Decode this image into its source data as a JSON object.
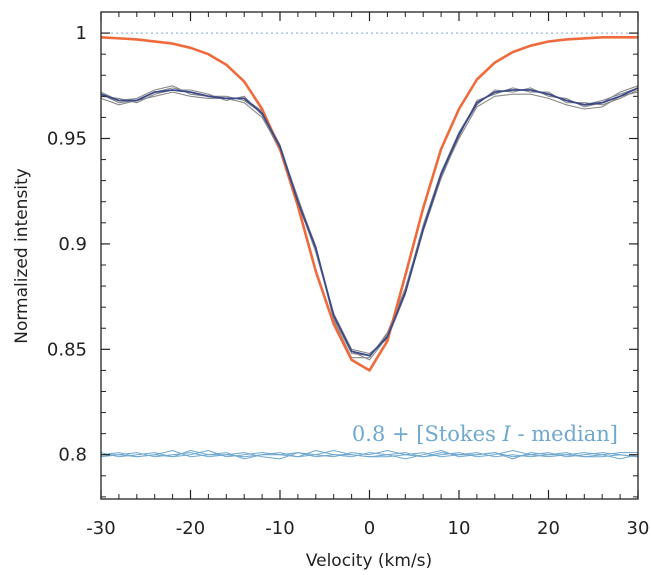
{
  "chart_data": {
    "type": "line",
    "xlabel": "Velocity (km/s)",
    "ylabel": "Normalized intensity",
    "xlim": [
      -30,
      30
    ],
    "ylim": [
      0.779,
      1.01
    ],
    "x_ticks": [
      -30,
      -20,
      -10,
      0,
      10,
      20,
      30
    ],
    "x_tick_labels": [
      "-30",
      "-20",
      "-10",
      "0",
      "10",
      "20",
      "30"
    ],
    "y_ticks": [
      0.8,
      0.85,
      0.9,
      0.95,
      1.0
    ],
    "y_tick_labels": [
      "0.8",
      "0.85",
      "0.9",
      "0.95",
      "1"
    ],
    "reference_line": {
      "y": 1.0,
      "style": "dotted",
      "color": "#7aa7d6"
    },
    "annotation": {
      "prefix": "0.8 + [Stokes ",
      "italic": "I",
      "suffix": " - median]",
      "color": "#6fa8d0"
    },
    "colors": {
      "observed_individual": "#8a8a8a",
      "observed_median": "#3b4a8a",
      "model": "#ef6a3c",
      "residuals": "#6fa8d0",
      "axis": "#222222"
    },
    "x_obs": [
      -30,
      -28,
      -26,
      -24,
      -22,
      -20,
      -18,
      -16,
      -14,
      -12,
      -10,
      -8,
      -6,
      -4,
      -2,
      0,
      2,
      4,
      6,
      8,
      10,
      12,
      14,
      16,
      18,
      20,
      22,
      24,
      26,
      28,
      30
    ],
    "series": [
      {
        "name": "",
        "role": "individual",
        "values": [
          0.971,
          0.967,
          0.968,
          0.972,
          0.974,
          0.972,
          0.97,
          0.969,
          0.969,
          0.963,
          0.947,
          0.921,
          0.899,
          0.865,
          0.848,
          0.847,
          0.857,
          0.878,
          0.909,
          0.934,
          0.953,
          0.967,
          0.972,
          0.973,
          0.973,
          0.971,
          0.968,
          0.966,
          0.968,
          0.971,
          0.974
        ]
      },
      {
        "name": "",
        "role": "individual",
        "values": [
          0.97,
          0.969,
          0.967,
          0.971,
          0.973,
          0.973,
          0.971,
          0.968,
          0.97,
          0.961,
          0.944,
          0.919,
          0.897,
          0.867,
          0.85,
          0.848,
          0.855,
          0.876,
          0.906,
          0.931,
          0.951,
          0.968,
          0.971,
          0.974,
          0.972,
          0.972,
          0.967,
          0.967,
          0.966,
          0.969,
          0.973
        ]
      },
      {
        "name": "",
        "role": "individual",
        "values": [
          0.972,
          0.968,
          0.969,
          0.973,
          0.975,
          0.971,
          0.97,
          0.97,
          0.968,
          0.962,
          0.946,
          0.922,
          0.898,
          0.864,
          0.846,
          0.846,
          0.858,
          0.879,
          0.908,
          0.933,
          0.952,
          0.966,
          0.973,
          0.972,
          0.974,
          0.97,
          0.969,
          0.965,
          0.967,
          0.972,
          0.975
        ]
      },
      {
        "name": "",
        "role": "individual",
        "values": [
          0.969,
          0.966,
          0.968,
          0.97,
          0.972,
          0.97,
          0.969,
          0.969,
          0.967,
          0.96,
          0.945,
          0.92,
          0.896,
          0.866,
          0.849,
          0.845,
          0.856,
          0.877,
          0.907,
          0.932,
          0.95,
          0.965,
          0.97,
          0.971,
          0.971,
          0.969,
          0.966,
          0.964,
          0.965,
          0.97,
          0.972
        ]
      },
      {
        "name": "",
        "role": "median",
        "values": [
          0.971,
          0.968,
          0.968,
          0.972,
          0.973,
          0.972,
          0.97,
          0.969,
          0.969,
          0.962,
          0.946,
          0.92,
          0.898,
          0.866,
          0.849,
          0.847,
          0.856,
          0.877,
          0.907,
          0.933,
          0.952,
          0.967,
          0.972,
          0.973,
          0.973,
          0.971,
          0.968,
          0.966,
          0.967,
          0.97,
          0.974
        ]
      },
      {
        "name": "",
        "role": "model",
        "x": [
          -30,
          -26,
          -22,
          -20,
          -18,
          -16,
          -14,
          -12,
          -10,
          -8,
          -6,
          -4,
          -2,
          0,
          2,
          4,
          6,
          8,
          10,
          12,
          14,
          16,
          18,
          20,
          22,
          26,
          30
        ],
        "values": [
          0.998,
          0.997,
          0.995,
          0.993,
          0.99,
          0.985,
          0.977,
          0.964,
          0.945,
          0.918,
          0.887,
          0.862,
          0.845,
          0.84,
          0.854,
          0.885,
          0.917,
          0.945,
          0.964,
          0.978,
          0.986,
          0.991,
          0.994,
          0.996,
          0.997,
          0.998,
          0.998
        ]
      },
      {
        "name": "",
        "role": "residual",
        "values": [
          0.8,
          0.801,
          0.799,
          0.8,
          0.802,
          0.799,
          0.8,
          0.801,
          0.798,
          0.8,
          0.801,
          0.799,
          0.802,
          0.8,
          0.799,
          0.801,
          0.8,
          0.798,
          0.8,
          0.802,
          0.799,
          0.8,
          0.801,
          0.799,
          0.8,
          0.801,
          0.799,
          0.8,
          0.801,
          0.8,
          0.799
        ]
      },
      {
        "name": "",
        "role": "residual",
        "values": [
          0.799,
          0.8,
          0.801,
          0.799,
          0.8,
          0.801,
          0.799,
          0.8,
          0.801,
          0.799,
          0.798,
          0.801,
          0.8,
          0.799,
          0.801,
          0.8,
          0.802,
          0.8,
          0.799,
          0.8,
          0.801,
          0.799,
          0.8,
          0.802,
          0.8,
          0.799,
          0.8,
          0.801,
          0.8,
          0.798,
          0.8
        ]
      },
      {
        "name": "",
        "role": "residual",
        "values": [
          0.801,
          0.799,
          0.8,
          0.801,
          0.799,
          0.8,
          0.802,
          0.799,
          0.8,
          0.801,
          0.8,
          0.799,
          0.8,
          0.802,
          0.8,
          0.799,
          0.8,
          0.801,
          0.799,
          0.801,
          0.8,
          0.801,
          0.799,
          0.8,
          0.799,
          0.8,
          0.801,
          0.799,
          0.8,
          0.801,
          0.801
        ]
      },
      {
        "name": "",
        "role": "residual",
        "values": [
          0.8,
          0.8,
          0.799,
          0.8,
          0.799,
          0.802,
          0.8,
          0.8,
          0.799,
          0.8,
          0.8,
          0.801,
          0.799,
          0.8,
          0.8,
          0.799,
          0.799,
          0.8,
          0.801,
          0.799,
          0.8,
          0.8,
          0.801,
          0.798,
          0.801,
          0.8,
          0.8,
          0.799,
          0.799,
          0.8,
          0.799
        ]
      }
    ]
  }
}
